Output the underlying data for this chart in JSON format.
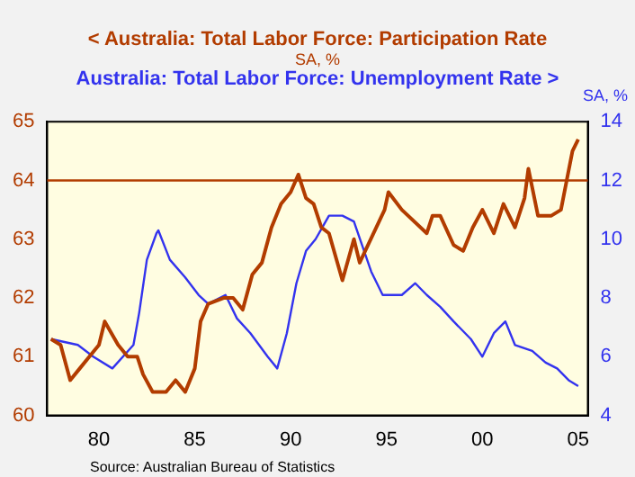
{
  "chart_data": {
    "type": "line",
    "ylabel": "SA, %",
    "y2label": "SA, %",
    "legend": "top",
    "grid": false,
    "marker": "none",
    "line_style": "solid",
    "xlim": [
      1977.3,
      2005.5
    ],
    "xticks": [
      {
        "value": 1980,
        "label": "80"
      },
      {
        "value": 1985,
        "label": "85"
      },
      {
        "value": 1990,
        "label": "90"
      },
      {
        "value": 1995,
        "label": "95"
      },
      {
        "value": 2000,
        "label": "00"
      },
      {
        "value": 2005,
        "label": "05"
      }
    ],
    "ylim": [
      60,
      65
    ],
    "yticks": [
      60,
      61,
      62,
      63,
      64,
      65
    ],
    "y2lim": [
      4,
      14
    ],
    "y2ticks": [
      4,
      6,
      8,
      10,
      12,
      14
    ],
    "ref_lines": [
      {
        "axis": "y",
        "value": 64,
        "color": "#b23c00"
      }
    ],
    "annotations": [
      "Source: Australian Bureau of Statistics"
    ],
    "series": [
      {
        "name": "< Australia: Total Labor Force: Participation Rate",
        "color": "#b23c00",
        "axis": "y",
        "x": [
          1977.5,
          1978,
          1978.5,
          1979,
          1979.5,
          1980,
          1980.3,
          1981,
          1981.5,
          1982,
          1982.3,
          1982.8,
          1983.5,
          1984,
          1984.5,
          1985,
          1985.3,
          1985.7,
          1986.5,
          1987,
          1987.5,
          1988,
          1988.5,
          1989,
          1989.5,
          1990,
          1990.4,
          1990.8,
          1991.2,
          1991.6,
          1992,
          1992.7,
          1993.3,
          1993.6,
          1994.9,
          1995.1,
          1995.8,
          1997.1,
          1997.4,
          1997.8,
          1998.5,
          1999,
          1999.5,
          2000,
          2000.6,
          2001.1,
          2001.7,
          2002.2,
          2002.4,
          2002.9,
          2003.6,
          2004.1,
          2004.4,
          2004.7,
          2005
        ],
        "values": [
          61.3,
          61.2,
          60.6,
          60.8,
          61,
          61.2,
          61.6,
          61.2,
          61,
          61,
          60.7,
          60.4,
          60.4,
          60.6,
          60.4,
          60.8,
          61.6,
          61.9,
          62,
          62,
          61.8,
          62.4,
          62.6,
          63.2,
          63.6,
          63.8,
          64.1,
          63.7,
          63.6,
          63.2,
          63.1,
          62.3,
          63,
          62.6,
          63.5,
          63.8,
          63.5,
          63.1,
          63.4,
          63.4,
          62.9,
          62.8,
          63.2,
          63.5,
          63.1,
          63.6,
          63.2,
          63.7,
          64.2,
          63.4,
          63.4,
          63.5,
          64,
          64.5,
          64.7
        ]
      },
      {
        "name": "Australia: Total Labor Force: Unemployment Rate >",
        "color": "#3333ee",
        "axis": "y2",
        "x": [
          1977.5,
          1978.9,
          1979.7,
          1980.7,
          1981.8,
          1982.1,
          1982.5,
          1983,
          1983.1,
          1983.7,
          1984.5,
          1985.2,
          1985.7,
          1986.6,
          1987.2,
          1987.9,
          1988.8,
          1989.3,
          1989.8,
          1990.3,
          1990.8,
          1991.3,
          1992,
          1992.7,
          1993.3,
          1994.2,
          1994.8,
          1995.8,
          1996.5,
          1997.1,
          1997.8,
          1998.5,
          1999.4,
          2000,
          2000.6,
          2001.2,
          2001.7,
          2002.6,
          2003.3,
          2003.9,
          2004.5,
          2005
        ],
        "values": [
          6.6,
          6.4,
          6,
          5.6,
          6.4,
          7.5,
          9.3,
          10.2,
          10.3,
          9.3,
          8.7,
          8.1,
          7.8,
          8.1,
          7.3,
          6.8,
          6,
          5.6,
          6.8,
          8.5,
          9.6,
          10,
          10.8,
          10.8,
          10.6,
          8.9,
          8.1,
          8.1,
          8.5,
          8.1,
          7.7,
          7.2,
          6.6,
          6,
          6.8,
          7.2,
          6.4,
          6.2,
          5.8,
          5.6,
          5.2,
          5
        ]
      }
    ]
  }
}
